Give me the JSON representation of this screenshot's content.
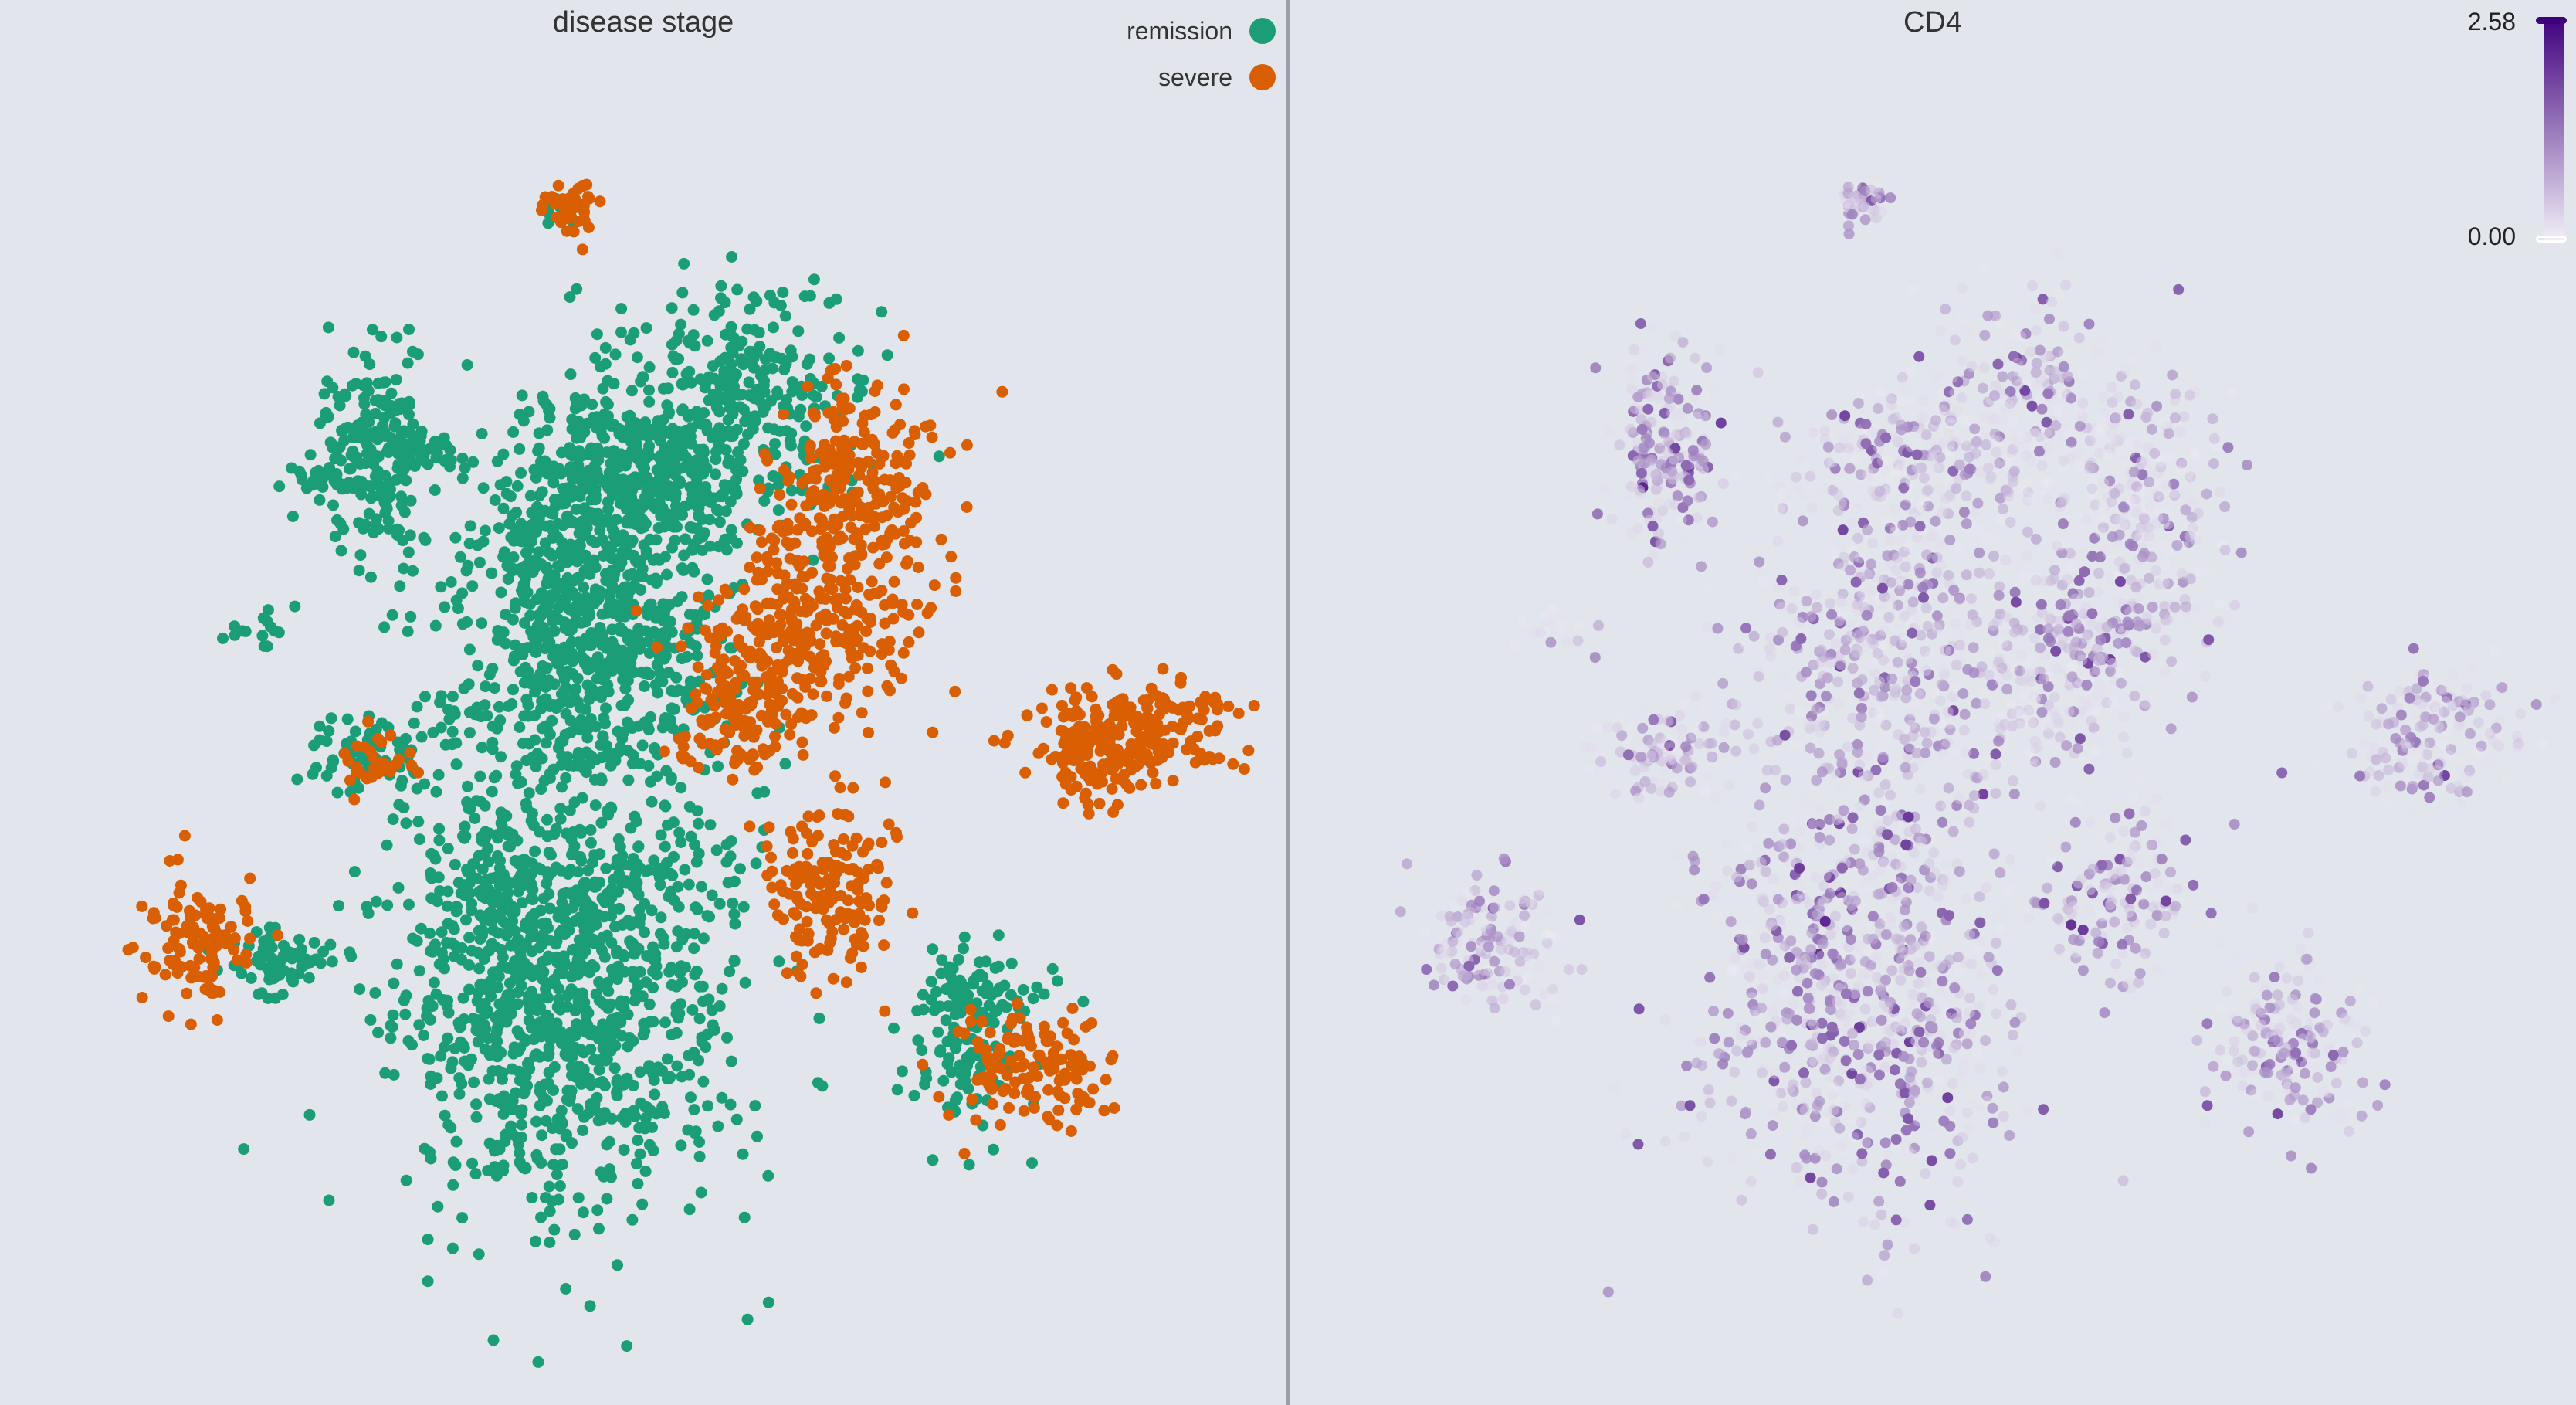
{
  "panels": [
    {
      "title": "disease stage",
      "legend": [
        {
          "label": "remission",
          "color": "#1b9e77"
        },
        {
          "label": "severe",
          "color": "#d95f02"
        }
      ]
    },
    {
      "title": "CD4",
      "colorbar": {
        "max_label": "2.58",
        "min_label": "0.00",
        "color_high": "#3f007d",
        "color_low": "#f2f0f7"
      }
    }
  ],
  "chart_data": [
    {
      "type": "scatter",
      "title": "disease stage",
      "xlabel": "",
      "ylabel": "",
      "color_by": "disease stage",
      "categories": [
        "remission",
        "severe"
      ],
      "colors": {
        "remission": "#1b9e77",
        "severe": "#d95f02"
      },
      "legend_position": "top-right",
      "grid": false,
      "xlim": [
        0,
        1666
      ],
      "ylim": [
        0,
        1819
      ],
      "series": [
        {
          "name": "remission",
          "clusters": [
            {
              "x": 735,
              "y": 1268,
              "sx": 105,
              "sy": 150,
              "n": 1100
            },
            {
              "x": 650,
              "y": 1150,
              "sx": 35,
              "sy": 55,
              "n": 80
            },
            {
              "x": 770,
              "y": 825,
              "sx": 85,
              "sy": 110,
              "n": 650
            },
            {
              "x": 950,
              "y": 520,
              "sx": 80,
              "sy": 70,
              "n": 320
            },
            {
              "x": 790,
              "y": 590,
              "sx": 70,
              "sy": 45,
              "n": 200
            },
            {
              "x": 730,
              "y": 700,
              "sx": 50,
              "sy": 45,
              "n": 120
            },
            {
              "x": 875,
              "y": 640,
              "sx": 60,
              "sy": 38,
              "n": 110
            },
            {
              "x": 487,
              "y": 585,
              "sx": 35,
              "sy": 60,
              "n": 220
            },
            {
              "x": 410,
              "y": 620,
              "sx": 18,
              "sy": 10,
              "n": 25
            },
            {
              "x": 560,
              "y": 590,
              "sx": 22,
              "sy": 14,
              "n": 30
            },
            {
              "x": 478,
              "y": 975,
              "sx": 40,
              "sy": 30,
              "n": 80
            },
            {
              "x": 600,
              "y": 920,
              "sx": 25,
              "sy": 12,
              "n": 15
            },
            {
              "x": 335,
              "y": 815,
              "sx": 22,
              "sy": 18,
              "n": 15
            },
            {
              "x": 362,
              "y": 1245,
              "sx": 40,
              "sy": 20,
              "n": 70
            },
            {
              "x": 1245,
              "y": 1335,
              "sx": 40,
              "sy": 60,
              "n": 110
            },
            {
              "x": 1285,
              "y": 1280,
              "sx": 30,
              "sy": 24,
              "n": 40
            },
            {
              "x": 730,
              "y": 270,
              "sx": 12,
              "sy": 12,
              "n": 15
            }
          ]
        },
        {
          "name": "severe",
          "clusters": [
            {
              "x": 1110,
              "y": 645,
              "sx": 55,
              "sy": 75,
              "n": 260
            },
            {
              "x": 1040,
              "y": 815,
              "sx": 70,
              "sy": 55,
              "n": 230
            },
            {
              "x": 975,
              "y": 910,
              "sx": 45,
              "sy": 45,
              "n": 120
            },
            {
              "x": 1475,
              "y": 955,
              "sx": 60,
              "sy": 40,
              "n": 200
            },
            {
              "x": 1395,
              "y": 975,
              "sx": 30,
              "sy": 35,
              "n": 60
            },
            {
              "x": 1075,
              "y": 1155,
              "sx": 45,
              "sy": 55,
              "n": 170
            },
            {
              "x": 1335,
              "y": 1380,
              "sx": 48,
              "sy": 38,
              "n": 130
            },
            {
              "x": 255,
              "y": 1225,
              "sx": 40,
              "sy": 40,
              "n": 110
            },
            {
              "x": 740,
              "y": 265,
              "sx": 18,
              "sy": 16,
              "n": 50
            },
            {
              "x": 485,
              "y": 990,
              "sx": 30,
              "sy": 22,
              "n": 30
            },
            {
              "x": 920,
              "y": 960,
              "sx": 30,
              "sy": 25,
              "n": 15
            }
          ]
        }
      ]
    },
    {
      "type": "scatter",
      "title": "CD4",
      "xlabel": "",
      "ylabel": "",
      "color_by": "CD4 expression",
      "color_range": [
        0,
        2.58
      ],
      "colormap": "Purples",
      "legend_position": "top-right",
      "grid": false,
      "xlim": [
        0,
        1666
      ],
      "ylim": [
        0,
        1819
      ],
      "series": [
        {
          "name": "",
          "clusters": [
            {
              "x": 735,
              "y": 1268,
              "sx": 105,
              "sy": 150,
              "n": 900,
              "mean_expr": 0.9
            },
            {
              "x": 770,
              "y": 825,
              "sx": 85,
              "sy": 110,
              "n": 500,
              "mean_expr": 0.7
            },
            {
              "x": 950,
              "y": 520,
              "sx": 80,
              "sy": 70,
              "n": 260,
              "mean_expr": 0.6
            },
            {
              "x": 790,
              "y": 590,
              "sx": 70,
              "sy": 45,
              "n": 150,
              "mean_expr": 0.6
            },
            {
              "x": 1110,
              "y": 645,
              "sx": 55,
              "sy": 75,
              "n": 220,
              "mean_expr": 0.55
            },
            {
              "x": 1040,
              "y": 815,
              "sx": 70,
              "sy": 55,
              "n": 200,
              "mean_expr": 0.85
            },
            {
              "x": 975,
              "y": 910,
              "sx": 45,
              "sy": 45,
              "n": 100,
              "mean_expr": 0.5
            },
            {
              "x": 487,
              "y": 585,
              "sx": 35,
              "sy": 60,
              "n": 200,
              "mean_expr": 1.05
            },
            {
              "x": 478,
              "y": 975,
              "sx": 40,
              "sy": 30,
              "n": 100,
              "mean_expr": 0.75
            },
            {
              "x": 1475,
              "y": 955,
              "sx": 60,
              "sy": 40,
              "n": 180,
              "mean_expr": 0.7
            },
            {
              "x": 1075,
              "y": 1155,
              "sx": 45,
              "sy": 55,
              "n": 150,
              "mean_expr": 0.9
            },
            {
              "x": 1300,
              "y": 1355,
              "sx": 55,
              "sy": 55,
              "n": 190,
              "mean_expr": 0.8
            },
            {
              "x": 265,
              "y": 1225,
              "sx": 45,
              "sy": 40,
              "n": 170,
              "mean_expr": 0.6
            },
            {
              "x": 740,
              "y": 265,
              "sx": 15,
              "sy": 14,
              "n": 45,
              "mean_expr": 0.7
            },
            {
              "x": 335,
              "y": 815,
              "sx": 22,
              "sy": 18,
              "n": 15,
              "mean_expr": 0.3
            }
          ]
        }
      ]
    }
  ]
}
